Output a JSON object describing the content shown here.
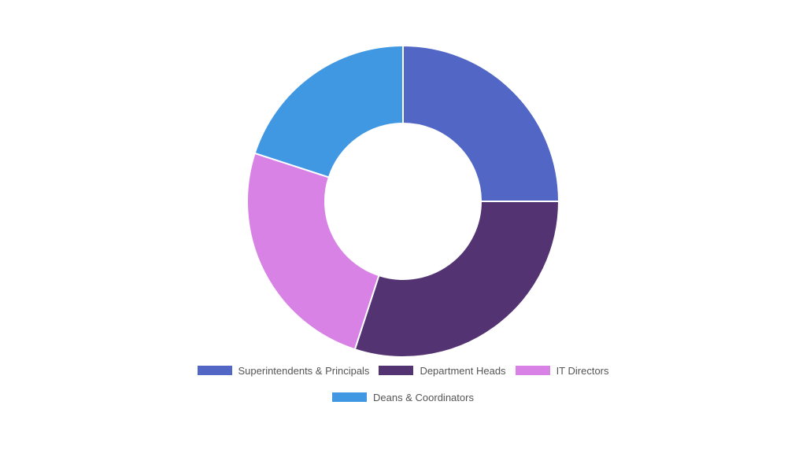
{
  "chart_data": {
    "type": "pie",
    "donut": true,
    "title": "",
    "legend_position": "bottom",
    "categories": [
      "Superintendents & Principals",
      "Department Heads",
      "IT Directors",
      "Deans & Coordinators"
    ],
    "values": [
      25,
      30,
      25,
      20
    ],
    "colors": [
      "#5166C5",
      "#533372",
      "#D882E6",
      "#4097E2"
    ]
  }
}
